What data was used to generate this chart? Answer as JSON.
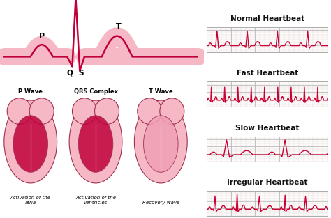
{
  "panels": [
    {
      "label": "Normal Heartbeat",
      "type": "normal"
    },
    {
      "label": "Fast Heartbeat",
      "type": "fast"
    },
    {
      "label": "Slow Heartbeat",
      "type": "slow"
    },
    {
      "label": "Irregular Heartbeat",
      "type": "irregular"
    }
  ],
  "ecg_color": "#cc0033",
  "grid_minor_color": "#d4d4d4",
  "grid_major_color": "#b0b0b0",
  "bg_color": "#ffffff",
  "panel_bg": "#fffafa",
  "label_fontsize": 7.5,
  "label_fontweight": "bold",
  "ecg_linewidth": 1.0,
  "border_color": "#aaaaaa",
  "wave_band_color": "#f5b8c4",
  "wave_band_dark": "#e07090",
  "wave_line_color": "#c0003a",
  "label_color": "#111111",
  "heart_outer": "#f5b8c4",
  "heart_inner_active": "#c0003a",
  "heart_inner_inactive": "#f0a0b5"
}
